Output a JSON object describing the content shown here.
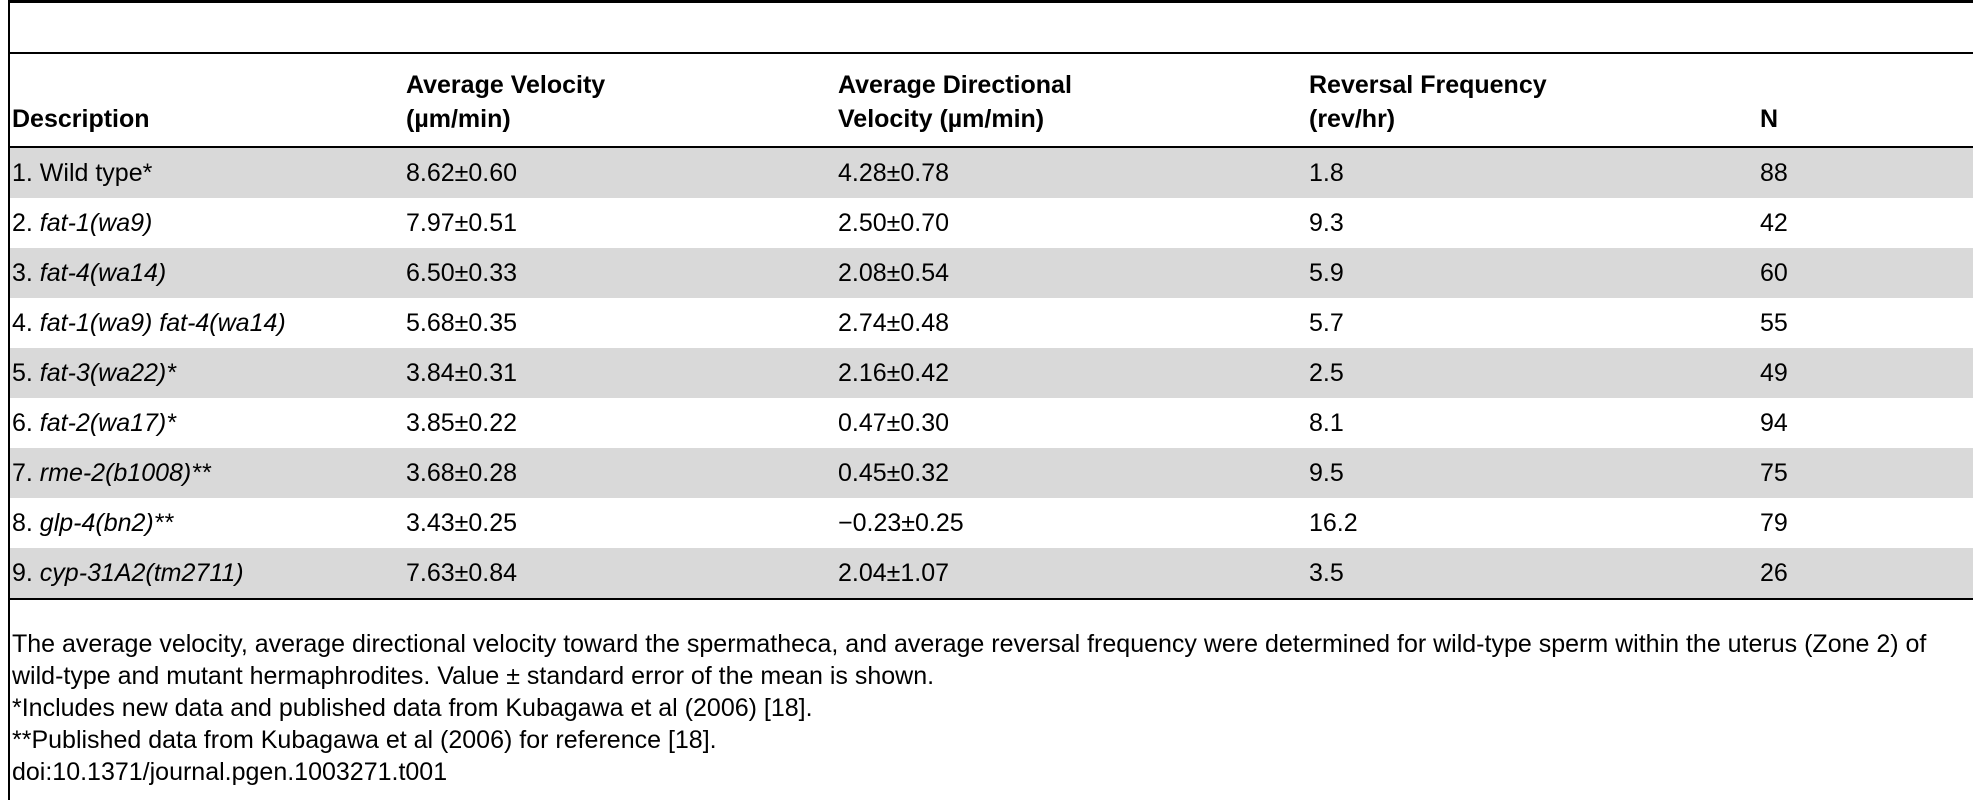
{
  "table": {
    "headers": [
      {
        "line1": "",
        "line2": "Description"
      },
      {
        "line1": "Average Velocity",
        "line2": "(µm/min)"
      },
      {
        "line1": "Average Directional",
        "line2": "Velocity (µm/min)"
      },
      {
        "line1": "Reversal Frequency",
        "line2": "(rev/hr)"
      },
      {
        "line1": "",
        "line2": "N"
      }
    ],
    "rows": [
      {
        "num": "1. ",
        "name": "Wild type*",
        "italic": false,
        "velocity": "8.62±0.60",
        "directional": "4.28±0.78",
        "reversal": "1.8",
        "n": "88"
      },
      {
        "num": "2. ",
        "name": "fat-1(wa9)",
        "italic": true,
        "velocity": "7.97±0.51",
        "directional": "2.50±0.70",
        "reversal": "9.3",
        "n": "42"
      },
      {
        "num": "3. ",
        "name": "fat-4(wa14)",
        "italic": true,
        "velocity": "6.50±0.33",
        "directional": "2.08±0.54",
        "reversal": "5.9",
        "n": "60"
      },
      {
        "num": "4. ",
        "name": "fat-1(wa9) fat-4(wa14)",
        "italic": true,
        "velocity": "5.68±0.35",
        "directional": "2.74±0.48",
        "reversal": "5.7",
        "n": "55"
      },
      {
        "num": "5. ",
        "name": "fat-3(wa22)*",
        "italic": true,
        "velocity": "3.84±0.31",
        "directional": "2.16±0.42",
        "reversal": "2.5",
        "n": "49"
      },
      {
        "num": "6. ",
        "name": "fat-2(wa17)*",
        "italic": true,
        "velocity": "3.85±0.22",
        "directional": "0.47±0.30",
        "reversal": "8.1",
        "n": "94"
      },
      {
        "num": "7. ",
        "name": "rme-2(b1008)**",
        "italic": true,
        "velocity": "3.68±0.28",
        "directional": "0.45±0.32",
        "reversal": "9.5",
        "n": "75"
      },
      {
        "num": "8. ",
        "name": "glp-4(bn2)**",
        "italic": true,
        "velocity": "3.43±0.25",
        "directional": "−0.23±0.25",
        "reversal": "16.2",
        "n": "79"
      },
      {
        "num": "9. ",
        "name": "cyp-31A2(tm2711)",
        "italic": true,
        "velocity": "7.63±0.84",
        "directional": "2.04±1.07",
        "reversal": "3.5",
        "n": "26"
      }
    ]
  },
  "notes": [
    "The average velocity, average directional velocity toward the spermatheca, and average reversal frequency were determined for wild-type sperm within the uterus (Zone 2) of wild-type and mutant hermaphrodites. Value ± standard error of the mean is shown.",
    "*Includes new data and published data from Kubagawa et al (2006) [18].",
    "**Published data from Kubagawa et al (2006) for reference [18].",
    "doi:10.1371/journal.pgen.1003271.t001"
  ]
}
